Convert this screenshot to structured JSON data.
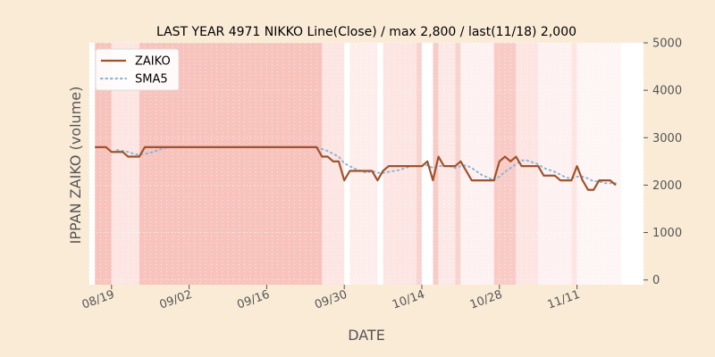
{
  "chart_data": {
    "type": "line",
    "title": "LAST YEAR 4971 NIKKO Line(Close) / max 2,800 / last(11/18) 2,000",
    "xlabel": "DATE",
    "ylabel": "IPPAN ZAIKO (volume)",
    "y_axis_side": "right",
    "ylim": [
      -100,
      5000
    ],
    "xlim": [
      "2023-08-15",
      "2023-11-23"
    ],
    "yticks": [
      0,
      1000,
      2000,
      3000,
      4000,
      5000
    ],
    "xticks": [
      {
        "date": "2023-08-19",
        "label": "08/19"
      },
      {
        "date": "2023-09-02",
        "label": "09/02"
      },
      {
        "date": "2023-09-16",
        "label": "09/16"
      },
      {
        "date": "2023-09-30",
        "label": "09/30"
      },
      {
        "date": "2023-10-14",
        "label": "10/14"
      },
      {
        "date": "2023-10-28",
        "label": "10/28"
      },
      {
        "date": "2023-11-11",
        "label": "11/11"
      }
    ],
    "legend_position": "top-left",
    "grid": true,
    "colors": {
      "zaiko": "#a0522d",
      "sma5": "#8fb4d4",
      "band": "#f4a9a0",
      "background": "#faebd7",
      "plot_bg": "#ffffff"
    },
    "series": [
      {
        "name": "ZAIKO",
        "style": "solid",
        "x": [
          "2023-08-16",
          "2023-08-17",
          "2023-08-18",
          "2023-08-19",
          "2023-08-20",
          "2023-08-21",
          "2023-08-22",
          "2023-08-23",
          "2023-08-24",
          "2023-08-25",
          "2023-08-26",
          "2023-08-27",
          "2023-08-28",
          "2023-08-29",
          "2023-08-30",
          "2023-08-31",
          "2023-09-01",
          "2023-09-02",
          "2023-09-03",
          "2023-09-04",
          "2023-09-05",
          "2023-09-06",
          "2023-09-07",
          "2023-09-08",
          "2023-09-09",
          "2023-09-10",
          "2023-09-11",
          "2023-09-12",
          "2023-09-13",
          "2023-09-14",
          "2023-09-15",
          "2023-09-16",
          "2023-09-17",
          "2023-09-18",
          "2023-09-19",
          "2023-09-20",
          "2023-09-21",
          "2023-09-22",
          "2023-09-23",
          "2023-09-24",
          "2023-09-25",
          "2023-09-26",
          "2023-09-27",
          "2023-09-28",
          "2023-09-29",
          "2023-09-30",
          "2023-10-01",
          "2023-10-02",
          "2023-10-03",
          "2023-10-04",
          "2023-10-05",
          "2023-10-06",
          "2023-10-07",
          "2023-10-08",
          "2023-10-09",
          "2023-10-10",
          "2023-10-11",
          "2023-10-12",
          "2023-10-13",
          "2023-10-14",
          "2023-10-15",
          "2023-10-16",
          "2023-10-17",
          "2023-10-18",
          "2023-10-19",
          "2023-10-20",
          "2023-10-21",
          "2023-10-22",
          "2023-10-23",
          "2023-10-24",
          "2023-10-25",
          "2023-10-26",
          "2023-10-27",
          "2023-10-28",
          "2023-10-29",
          "2023-10-30",
          "2023-10-31",
          "2023-11-01",
          "2023-11-02",
          "2023-11-03",
          "2023-11-04",
          "2023-11-05",
          "2023-11-06",
          "2023-11-07",
          "2023-11-08",
          "2023-11-09",
          "2023-11-10",
          "2023-11-11",
          "2023-11-12",
          "2023-11-13",
          "2023-11-14",
          "2023-11-15",
          "2023-11-16",
          "2023-11-17",
          "2023-11-18"
        ],
        "values": [
          2800,
          2800,
          2800,
          2700,
          2700,
          2700,
          2600,
          2600,
          2600,
          2800,
          2800,
          2800,
          2800,
          2800,
          2800,
          2800,
          2800,
          2800,
          2800,
          2800,
          2800,
          2800,
          2800,
          2800,
          2800,
          2800,
          2800,
          2800,
          2800,
          2800,
          2800,
          2800,
          2800,
          2800,
          2800,
          2800,
          2800,
          2800,
          2800,
          2800,
          2800,
          2600,
          2600,
          2500,
          2500,
          2100,
          2300,
          2300,
          2300,
          2300,
          2300,
          2100,
          2300,
          2400,
          2400,
          2400,
          2400,
          2400,
          2400,
          2400,
          2500,
          2100,
          2600,
          2400,
          2400,
          2400,
          2500,
          2300,
          2100,
          2100,
          2100,
          2100,
          2100,
          2500,
          2600,
          2500,
          2600,
          2400,
          2400,
          2400,
          2400,
          2200,
          2200,
          2200,
          2100,
          2100,
          2100,
          2400,
          2100,
          1900,
          1900,
          2100,
          2100,
          2100,
          2000
        ]
      },
      {
        "name": "SMA5",
        "style": "dotted",
        "x": [
          "2023-08-20",
          "2023-08-21",
          "2023-08-22",
          "2023-08-23",
          "2023-08-24",
          "2023-08-25",
          "2023-08-26",
          "2023-08-27",
          "2023-08-28",
          "2023-08-29",
          "2023-08-30",
          "2023-08-31",
          "2023-09-01",
          "2023-09-02",
          "2023-09-03",
          "2023-09-04",
          "2023-09-05",
          "2023-09-06",
          "2023-09-07",
          "2023-09-08",
          "2023-09-09",
          "2023-09-10",
          "2023-09-11",
          "2023-09-12",
          "2023-09-13",
          "2023-09-14",
          "2023-09-15",
          "2023-09-16",
          "2023-09-17",
          "2023-09-18",
          "2023-09-19",
          "2023-09-20",
          "2023-09-21",
          "2023-09-22",
          "2023-09-23",
          "2023-09-24",
          "2023-09-25",
          "2023-09-26",
          "2023-09-27",
          "2023-09-28",
          "2023-09-29",
          "2023-09-30",
          "2023-10-01",
          "2023-10-02",
          "2023-10-03",
          "2023-10-04",
          "2023-10-05",
          "2023-10-06",
          "2023-10-07",
          "2023-10-08",
          "2023-10-09",
          "2023-10-10",
          "2023-10-11",
          "2023-10-12",
          "2023-10-13",
          "2023-10-14",
          "2023-10-15",
          "2023-10-16",
          "2023-10-17",
          "2023-10-18",
          "2023-10-19",
          "2023-10-20",
          "2023-10-21",
          "2023-10-22",
          "2023-10-23",
          "2023-10-24",
          "2023-10-25",
          "2023-10-26",
          "2023-10-27",
          "2023-10-28",
          "2023-10-29",
          "2023-10-30",
          "2023-10-31",
          "2023-11-01",
          "2023-11-02",
          "2023-11-03",
          "2023-11-04",
          "2023-11-05",
          "2023-11-06",
          "2023-11-07",
          "2023-11-08",
          "2023-11-09",
          "2023-11-10",
          "2023-11-11",
          "2023-11-12",
          "2023-11-13",
          "2023-11-14",
          "2023-11-15",
          "2023-11-16",
          "2023-11-17",
          "2023-11-18"
        ],
        "values": [
          2740,
          2720,
          2700,
          2660,
          2640,
          2660,
          2680,
          2720,
          2760,
          2800,
          2800,
          2800,
          2800,
          2800,
          2800,
          2800,
          2800,
          2800,
          2800,
          2800,
          2800,
          2800,
          2800,
          2800,
          2800,
          2800,
          2800,
          2800,
          2800,
          2800,
          2800,
          2800,
          2800,
          2800,
          2800,
          2800,
          2800,
          2760,
          2720,
          2660,
          2600,
          2460,
          2400,
          2340,
          2300,
          2260,
          2300,
          2260,
          2260,
          2280,
          2300,
          2320,
          2360,
          2400,
          2400,
          2400,
          2420,
          2360,
          2400,
          2400,
          2400,
          2360,
          2400,
          2420,
          2360,
          2280,
          2200,
          2160,
          2100,
          2180,
          2280,
          2360,
          2440,
          2520,
          2520,
          2480,
          2440,
          2360,
          2320,
          2280,
          2220,
          2160,
          2140,
          2180,
          2180,
          2140,
          2080,
          2080,
          2040,
          2040,
          2040
        ]
      }
    ],
    "highlight_bands": [
      {
        "start": "2023-08-16",
        "end": "2023-08-19",
        "intensity": 0.7
      },
      {
        "start": "2023-08-19",
        "end": "2023-08-24",
        "intensity": 0.3
      },
      {
        "start": "2023-08-24",
        "end": "2023-09-26",
        "intensity": 0.7
      },
      {
        "start": "2023-09-26",
        "end": "2023-09-30",
        "intensity": 0.3
      },
      {
        "start": "2023-10-01",
        "end": "2023-10-06",
        "intensity": 0.2
      },
      {
        "start": "2023-10-07",
        "end": "2023-10-13",
        "intensity": 0.3
      },
      {
        "start": "2023-10-13",
        "end": "2023-10-14",
        "intensity": 0.5
      },
      {
        "start": "2023-10-16",
        "end": "2023-10-17",
        "intensity": 0.6
      },
      {
        "start": "2023-10-17",
        "end": "2023-10-20",
        "intensity": 0.25
      },
      {
        "start": "2023-10-20",
        "end": "2023-10-21",
        "intensity": 0.5
      },
      {
        "start": "2023-10-21",
        "end": "2023-10-27",
        "intensity": 0.15
      },
      {
        "start": "2023-10-27",
        "end": "2023-10-31",
        "intensity": 0.6
      },
      {
        "start": "2023-10-31",
        "end": "2023-11-04",
        "intensity": 0.3
      },
      {
        "start": "2023-11-04",
        "end": "2023-11-10",
        "intensity": 0.15
      },
      {
        "start": "2023-11-10",
        "end": "2023-11-11",
        "intensity": 0.3
      },
      {
        "start": "2023-11-11",
        "end": "2023-11-19",
        "intensity": 0.1
      }
    ]
  }
}
